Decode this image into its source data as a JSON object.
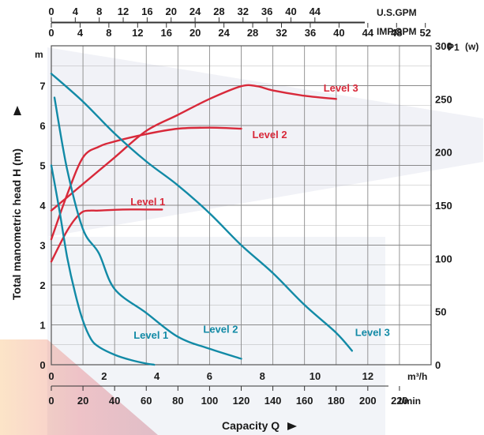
{
  "chart_data": {
    "type": "line",
    "axes": {
      "left": {
        "label": "Total manometric head H (m)",
        "unit": "m",
        "range": [
          0,
          8
        ],
        "ticks": [
          0,
          1,
          2,
          3,
          4,
          5,
          6,
          7
        ]
      },
      "right": {
        "label": "P1",
        "unit": "(w)",
        "range": [
          0,
          300
        ],
        "ticks": [
          0,
          50,
          100,
          150,
          200,
          250,
          300
        ]
      },
      "bottom_m3h": {
        "unit": "m³/h",
        "range": [
          0,
          14.4
        ],
        "ticks": [
          0,
          2,
          4,
          6,
          8,
          10,
          12
        ]
      },
      "bottom_lmin": {
        "label": "Capacity Q",
        "unit": "l/min",
        "range": [
          0,
          240
        ],
        "ticks": [
          0,
          20,
          40,
          60,
          80,
          100,
          120,
          140,
          160,
          180,
          200,
          220
        ]
      },
      "top_usgpm": {
        "unit": "U.S.GPM",
        "range": [
          0,
          63.4
        ],
        "ticks": [
          0,
          4,
          8,
          12,
          16,
          20,
          24,
          28,
          32,
          36,
          40,
          44
        ]
      },
      "top_impgpm": {
        "unit": "IMP.GPM",
        "range": [
          0,
          52.8
        ],
        "ticks": [
          0,
          4,
          8,
          12,
          16,
          20,
          24,
          28,
          32,
          36,
          40,
          44,
          48,
          52
        ]
      }
    },
    "head_curves": [
      {
        "name": "Level 1",
        "x": [
          0,
          5,
          10,
          15,
          20,
          25,
          30,
          40,
          50,
          60,
          65
        ],
        "y": [
          5.0,
          3.9,
          2.7,
          1.8,
          1.1,
          0.65,
          0.45,
          0.25,
          0.12,
          0.03,
          0.0
        ]
      },
      {
        "name": "Level 2",
        "x": [
          2,
          10,
          20,
          30,
          40,
          60,
          80,
          100,
          120
        ],
        "y": [
          6.7,
          4.9,
          3.4,
          2.8,
          1.9,
          1.3,
          0.7,
          0.4,
          0.15
        ]
      },
      {
        "name": "Level 3",
        "x": [
          0,
          20,
          40,
          60,
          80,
          100,
          120,
          140,
          160,
          180,
          190
        ],
        "y": [
          7.3,
          6.6,
          5.8,
          5.1,
          4.5,
          3.8,
          3.0,
          2.3,
          1.5,
          0.8,
          0.35
        ]
      }
    ],
    "power_curves": [
      {
        "name": "Level 1",
        "x": [
          0,
          5,
          10,
          15,
          20,
          25,
          30,
          45,
          60,
          70
        ],
        "y": [
          97,
          112,
          126,
          137,
          144,
          145,
          145,
          146,
          146,
          146
        ]
      },
      {
        "name": "Level 2",
        "x": [
          0,
          10,
          20,
          30,
          40,
          60,
          80,
          100,
          120
        ],
        "y": [
          118,
          160,
          195,
          205,
          210,
          217,
          222,
          223,
          222
        ]
      },
      {
        "name": "Level 3",
        "x": [
          0,
          20,
          40,
          60,
          80,
          100,
          120,
          130,
          140,
          160,
          180
        ],
        "y": [
          145,
          170,
          195,
          220,
          235,
          250,
          262,
          262,
          258,
          253,
          250
        ]
      }
    ],
    "series_labels": [
      {
        "text": "Level 1",
        "group": "power"
      },
      {
        "text": "Level 2",
        "group": "power"
      },
      {
        "text": "Level 3",
        "group": "power"
      },
      {
        "text": "Level 1",
        "group": "head"
      },
      {
        "text": "Level 2",
        "group": "head"
      },
      {
        "text": "Level 3",
        "group": "head"
      }
    ],
    "grid": true,
    "colors": {
      "head": "#128aa6",
      "power": "#d8293a",
      "grid": "#8a8a8a",
      "text": "#1a1a1a"
    }
  }
}
